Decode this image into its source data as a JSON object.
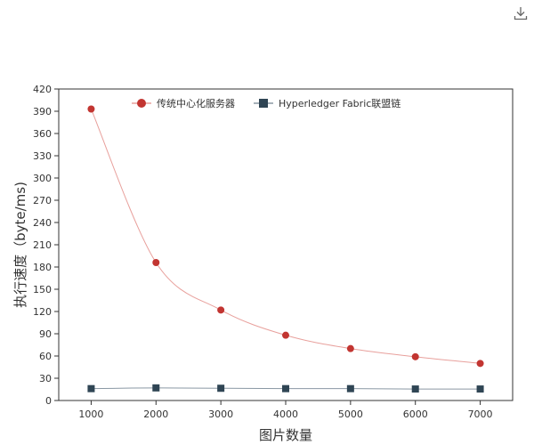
{
  "toolbar": {
    "download_icon": "download-icon"
  },
  "chart_data": {
    "type": "line",
    "title": "",
    "xlabel": "图片数量",
    "ylabel": "执行速度（byte/ms)",
    "x": [
      1000,
      2000,
      3000,
      4000,
      5000,
      6000,
      7000
    ],
    "x_ticks": [
      "1000",
      "2000",
      "3000",
      "4000",
      "5000",
      "6000",
      "7000"
    ],
    "ylim": [
      0,
      420
    ],
    "y_ticks": [
      "0",
      "30",
      "60",
      "90",
      "120",
      "150",
      "180",
      "210",
      "240",
      "270",
      "300",
      "330",
      "360",
      "390",
      "420"
    ],
    "grid": false,
    "legend_position": "top",
    "series": [
      {
        "name": "传统中心化服务器",
        "values": [
          393,
          186,
          122,
          88,
          70,
          59,
          50
        ],
        "color": "#c23531",
        "line_color": "#e8a09c",
        "marker": "circle"
      },
      {
        "name": "Hyperledger Fabric联盟链",
        "values": [
          16,
          17,
          16.5,
          16,
          16,
          15.5,
          15.5
        ],
        "color": "#2f4554",
        "line_color": "#8a98a4",
        "marker": "square"
      }
    ]
  }
}
